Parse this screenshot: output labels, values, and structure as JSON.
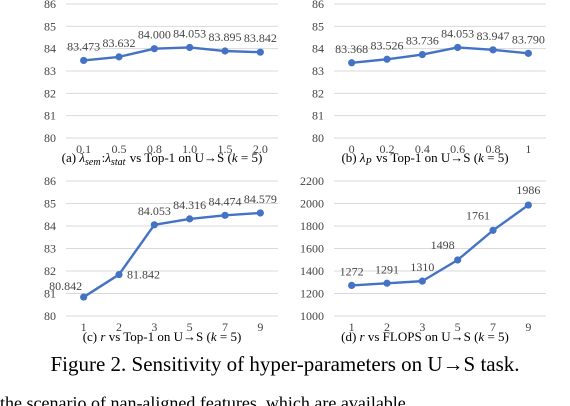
{
  "figure": {
    "caption": "Figure 2. Sensitivity of hyper-parameters on U→S task.",
    "trailing_text": "the scenario of nan-aligned features, which are available..."
  },
  "colors": {
    "line": "#4472C4",
    "grid": "#d9d9d9",
    "tick_text": "#595959",
    "label_text": "#404040"
  },
  "chart_data": [
    {
      "type": "line",
      "caption": "(a) λ_sem:λ_stat vs Top-1 on U→S (k = 5)",
      "categories": [
        "0.1",
        "0.5",
        "0.8",
        "1.0",
        "1.5",
        "2.0"
      ],
      "values": [
        83.473,
        83.632,
        84.0,
        84.053,
        83.895,
        83.842
      ],
      "labels": [
        "83.473",
        "83.632",
        "84.000",
        "84.053",
        "83.895",
        "83.842"
      ],
      "ylim": [
        80,
        86
      ],
      "yticks": [
        80,
        81,
        82,
        83,
        84,
        85,
        86
      ],
      "xlabel": "",
      "ylabel": "",
      "grid": true
    },
    {
      "type": "line",
      "caption": "(b) λ_P vs Top-1 on U→S (k = 5)",
      "categories": [
        "0",
        "0.2",
        "0.4",
        "0.6",
        "0.8",
        "1"
      ],
      "values": [
        83.368,
        83.526,
        83.736,
        84.053,
        83.947,
        83.79
      ],
      "labels": [
        "83.368",
        "83.526",
        "83.736",
        "84.053",
        "83.947",
        "83.790"
      ],
      "ylim": [
        80,
        86
      ],
      "yticks": [
        80,
        81,
        82,
        83,
        84,
        85,
        86
      ],
      "xlabel": "",
      "ylabel": "",
      "grid": true
    },
    {
      "type": "line",
      "caption": "(c) r vs Top-1 on U→S (k = 5)",
      "categories": [
        "1",
        "2",
        "3",
        "5",
        "7",
        "9"
      ],
      "values": [
        80.842,
        81.842,
        84.053,
        84.316,
        84.474,
        84.579
      ],
      "labels": [
        "80.842",
        "81.842",
        "84.053",
        "84.316",
        "84.474",
        "84.579"
      ],
      "ylim": [
        80,
        86
      ],
      "yticks": [
        80,
        81,
        82,
        83,
        84,
        85,
        86
      ],
      "xlabel": "",
      "ylabel": "",
      "grid": true
    },
    {
      "type": "line",
      "caption": "(d) r vs FLOPS on U→S (k = 5)",
      "categories": [
        "1",
        "2",
        "3",
        "5",
        "7",
        "9"
      ],
      "values": [
        1272,
        1291,
        1310,
        1498,
        1761,
        1986
      ],
      "labels": [
        "1272",
        "1291",
        "1310",
        "1498",
        "1761",
        "1986"
      ],
      "ylim": [
        1000,
        2200
      ],
      "yticks": [
        1000,
        1200,
        1400,
        1600,
        1800,
        2000,
        2200
      ],
      "xlabel": "",
      "ylabel": "",
      "grid": true
    }
  ]
}
